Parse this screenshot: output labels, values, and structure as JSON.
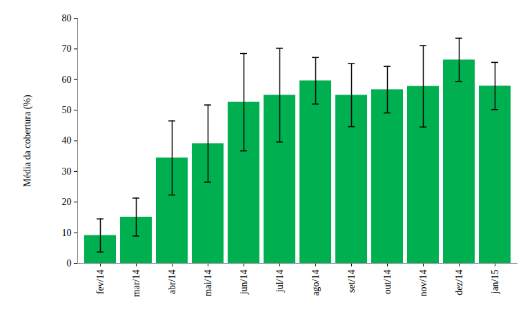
{
  "chart_data": {
    "type": "bar",
    "y_label": "Média da cobertura (%)",
    "categories": [
      "fev/14",
      "mar/14",
      "abr/14",
      "mai/14",
      "jun/14",
      "jul/14",
      "ago/14",
      "set/14",
      "out/14",
      "nov/14",
      "dez/14",
      "jan/15"
    ],
    "values": [
      9.1,
      15.1,
      34.4,
      39.1,
      52.6,
      54.9,
      59.6,
      54.9,
      56.7,
      57.8,
      66.4,
      57.9
    ],
    "errors": [
      5.4,
      6.2,
      12.1,
      12.6,
      15.9,
      15.3,
      7.6,
      10.3,
      7.6,
      13.3,
      7.1,
      7.7
    ],
    "color": "#00b050",
    "ylim": [
      0,
      80
    ],
    "yticks": [
      0,
      10,
      20,
      30,
      40,
      50,
      60,
      70,
      80
    ],
    "grid": false
  }
}
